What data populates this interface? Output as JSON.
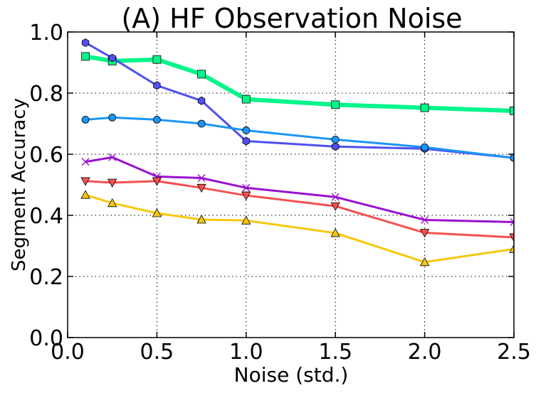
{
  "chart_data": {
    "type": "line",
    "title": "(A) HF Observation Noise",
    "xlabel": "Noise (std.)",
    "ylabel": "Segment Accuracy",
    "xlim": [
      0.0,
      2.5
    ],
    "ylim": [
      0.0,
      1.0
    ],
    "grid": true,
    "x": [
      0.1,
      0.25,
      0.5,
      0.75,
      1.0,
      1.5,
      2.0,
      2.5
    ],
    "xticks": [
      "0.0",
      "0.5",
      "1.0",
      "1.5",
      "2.0",
      "2.5"
    ],
    "yticks": [
      "0.0",
      "0.2",
      "0.4",
      "0.6",
      "0.8",
      "1.0"
    ],
    "series": [
      {
        "color": "#00f58a",
        "marker": "square",
        "width": 6,
        "values": [
          0.92,
          0.905,
          0.91,
          0.862,
          0.78,
          0.762,
          0.752,
          0.742
        ]
      },
      {
        "color": "#5050f0",
        "marker": "hexagon",
        "width": 3,
        "values": [
          0.965,
          0.915,
          0.825,
          0.775,
          0.643,
          0.625,
          0.618,
          0.588
        ]
      },
      {
        "color": "#1a96f5",
        "marker": "circle",
        "width": 3,
        "values": [
          0.713,
          0.72,
          0.713,
          0.7,
          0.678,
          0.648,
          0.623,
          0.588
        ]
      },
      {
        "color": "#9a10d0",
        "marker": "x",
        "width": 3,
        "values": [
          0.575,
          0.59,
          0.527,
          0.522,
          0.49,
          0.46,
          0.385,
          0.378
        ]
      },
      {
        "color": "#f55050",
        "marker": "triangle-down",
        "width": 3,
        "values": [
          0.512,
          0.507,
          0.512,
          0.49,
          0.465,
          0.43,
          0.343,
          0.328
        ]
      },
      {
        "color": "#f5c80a",
        "marker": "triangle-up",
        "width": 3,
        "values": [
          0.467,
          0.44,
          0.407,
          0.386,
          0.383,
          0.342,
          0.247,
          0.29
        ]
      }
    ]
  }
}
